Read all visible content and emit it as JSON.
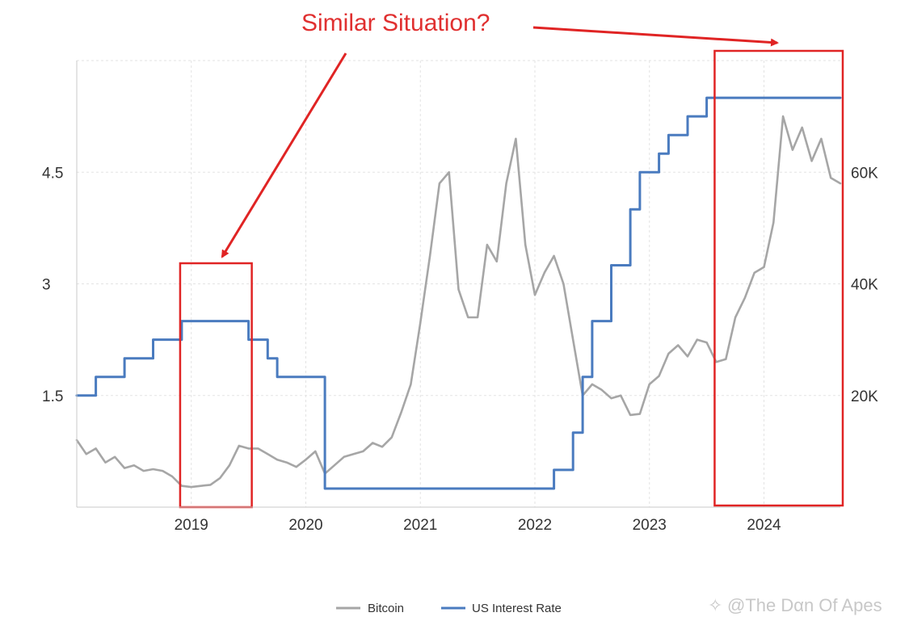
{
  "chart_data": {
    "type": "line",
    "title": "Similar Situation?",
    "x_ticks": [
      "2019",
      "2020",
      "2021",
      "2022",
      "2023",
      "2024"
    ],
    "x_range": [
      "2018-01",
      "2024-09"
    ],
    "y_left": {
      "ticks": [
        "1.5",
        "3",
        "4.5"
      ],
      "range": [
        0,
        6.0
      ]
    },
    "y_right": {
      "ticks": [
        "20K",
        "40K",
        "60K"
      ],
      "range": [
        0,
        80000
      ]
    },
    "grid": true,
    "legend_position": "bottom-center",
    "legend": [
      "Bitcoin",
      "US Interest Rate"
    ],
    "series": [
      {
        "name": "Bitcoin",
        "axis": "right",
        "color": "#a6a6a6",
        "points": [
          [
            "2018-01",
            12000
          ],
          [
            "2018-02",
            9500
          ],
          [
            "2018-03",
            10500
          ],
          [
            "2018-04",
            8000
          ],
          [
            "2018-05",
            9000
          ],
          [
            "2018-06",
            7000
          ],
          [
            "2018-07",
            7500
          ],
          [
            "2018-08",
            6500
          ],
          [
            "2018-09",
            6800
          ],
          [
            "2018-10",
            6500
          ],
          [
            "2018-11",
            5500
          ],
          [
            "2018-12",
            3800
          ],
          [
            "2019-01",
            3600
          ],
          [
            "2019-02",
            3800
          ],
          [
            "2019-03",
            4000
          ],
          [
            "2019-04",
            5200
          ],
          [
            "2019-05",
            7500
          ],
          [
            "2019-06",
            11000
          ],
          [
            "2019-07",
            10500
          ],
          [
            "2019-08",
            10500
          ],
          [
            "2019-09",
            9500
          ],
          [
            "2019-10",
            8500
          ],
          [
            "2019-11",
            8000
          ],
          [
            "2019-12",
            7200
          ],
          [
            "2020-01",
            8500
          ],
          [
            "2020-02",
            10000
          ],
          [
            "2020-03",
            6000
          ],
          [
            "2020-04",
            7500
          ],
          [
            "2020-05",
            9000
          ],
          [
            "2020-06",
            9500
          ],
          [
            "2020-07",
            10000
          ],
          [
            "2020-08",
            11500
          ],
          [
            "2020-09",
            10800
          ],
          [
            "2020-10",
            12500
          ],
          [
            "2020-11",
            17000
          ],
          [
            "2020-12",
            22000
          ],
          [
            "2021-01",
            33000
          ],
          [
            "2021-02",
            45000
          ],
          [
            "2021-03",
            58000
          ],
          [
            "2021-04",
            60000
          ],
          [
            "2021-05",
            39000
          ],
          [
            "2021-06",
            34000
          ],
          [
            "2021-07",
            34000
          ],
          [
            "2021-08",
            47000
          ],
          [
            "2021-09",
            44000
          ],
          [
            "2021-10",
            58000
          ],
          [
            "2021-11",
            66000
          ],
          [
            "2021-12",
            47000
          ],
          [
            "2022-01",
            38000
          ],
          [
            "2022-02",
            42000
          ],
          [
            "2022-03",
            45000
          ],
          [
            "2022-04",
            40000
          ],
          [
            "2022-05",
            30000
          ],
          [
            "2022-06",
            20000
          ],
          [
            "2022-07",
            22000
          ],
          [
            "2022-08",
            21000
          ],
          [
            "2022-09",
            19500
          ],
          [
            "2022-10",
            20000
          ],
          [
            "2022-11",
            16500
          ],
          [
            "2022-12",
            16700
          ],
          [
            "2023-01",
            22000
          ],
          [
            "2023-02",
            23500
          ],
          [
            "2023-03",
            27500
          ],
          [
            "2023-04",
            29000
          ],
          [
            "2023-05",
            27000
          ],
          [
            "2023-06",
            30000
          ],
          [
            "2023-07",
            29500
          ],
          [
            "2023-08",
            26000
          ],
          [
            "2023-09",
            26500
          ],
          [
            "2023-10",
            34000
          ],
          [
            "2023-11",
            37500
          ],
          [
            "2023-12",
            42000
          ],
          [
            "2024-01",
            43000
          ],
          [
            "2024-02",
            51000
          ],
          [
            "2024-03",
            70000
          ],
          [
            "2024-04",
            64000
          ],
          [
            "2024-05",
            68000
          ],
          [
            "2024-06",
            62000
          ],
          [
            "2024-07",
            66000
          ],
          [
            "2024-08",
            59000
          ],
          [
            "2024-09",
            58000
          ]
        ]
      },
      {
        "name": "US Interest Rate",
        "axis": "left",
        "color": "#4a7bbf",
        "points": [
          [
            "2018-01",
            1.5
          ],
          [
            "2018-03",
            1.5
          ],
          [
            "2018-03",
            1.75
          ],
          [
            "2018-06",
            1.75
          ],
          [
            "2018-06",
            2.0
          ],
          [
            "2018-09",
            2.0
          ],
          [
            "2018-09",
            2.25
          ],
          [
            "2018-12",
            2.25
          ],
          [
            "2018-12",
            2.5
          ],
          [
            "2019-07",
            2.5
          ],
          [
            "2019-07",
            2.25
          ],
          [
            "2019-09",
            2.25
          ],
          [
            "2019-09",
            2.0
          ],
          [
            "2019-10",
            2.0
          ],
          [
            "2019-10",
            1.75
          ],
          [
            "2020-03",
            1.75
          ],
          [
            "2020-03",
            0.25
          ],
          [
            "2022-03",
            0.25
          ],
          [
            "2022-03",
            0.5
          ],
          [
            "2022-05",
            0.5
          ],
          [
            "2022-05",
            1.0
          ],
          [
            "2022-06",
            1.0
          ],
          [
            "2022-06",
            1.75
          ],
          [
            "2022-07",
            1.75
          ],
          [
            "2022-07",
            2.5
          ],
          [
            "2022-09",
            2.5
          ],
          [
            "2022-09",
            3.25
          ],
          [
            "2022-11",
            3.25
          ],
          [
            "2022-11",
            4.0
          ],
          [
            "2022-12",
            4.0
          ],
          [
            "2022-12",
            4.5
          ],
          [
            "2023-02",
            4.5
          ],
          [
            "2023-02",
            4.75
          ],
          [
            "2023-03",
            4.75
          ],
          [
            "2023-03",
            5.0
          ],
          [
            "2023-05",
            5.0
          ],
          [
            "2023-05",
            5.25
          ],
          [
            "2023-07",
            5.25
          ],
          [
            "2023-07",
            5.5
          ],
          [
            "2024-09",
            5.5
          ]
        ]
      }
    ],
    "highlights": [
      {
        "from": "2018-12",
        "to": "2019-07"
      },
      {
        "from": "2023-08",
        "to": "2024-09"
      }
    ]
  },
  "watermark": "@The Dαn Of Apes",
  "colors": {
    "highlight": "#e02424",
    "arrow": "#e02424",
    "grid": "#e3e3e3",
    "axis": "#c8c8c8"
  }
}
